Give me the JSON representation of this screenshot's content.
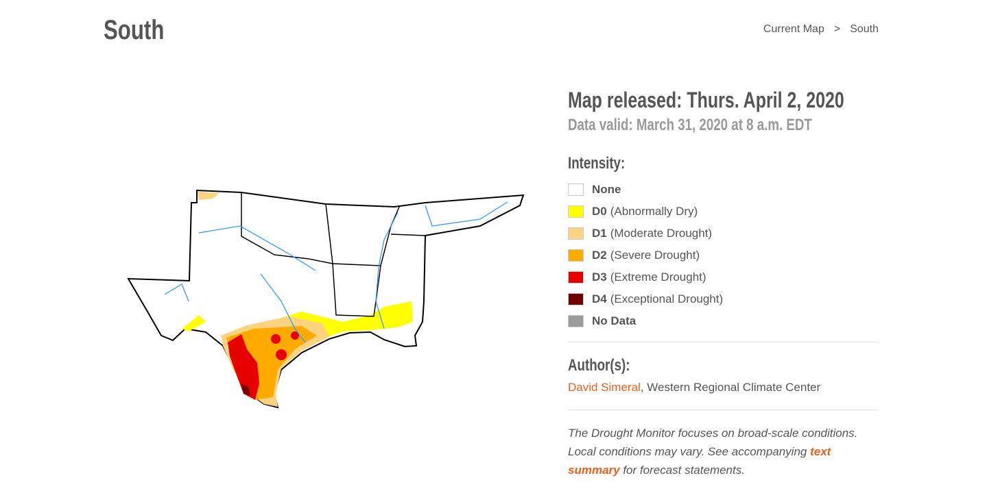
{
  "header": {
    "title": "South",
    "breadcrumb": [
      "Current Map",
      ">",
      "South"
    ]
  },
  "map_info": {
    "released": "Map released: Thurs. April 2, 2020",
    "valid": "Data valid: March 31, 2020 at 8 a.m. EDT"
  },
  "intensity": {
    "heading": "Intensity:",
    "items": [
      {
        "label": "None",
        "color": "#ffffff"
      },
      {
        "label": "D0",
        "description": "(Abnormally Dry)",
        "color": "#ffff00"
      },
      {
        "label": "D1",
        "description": "(Moderate Drought)",
        "color": "#fcd37f"
      },
      {
        "label": "D2",
        "description": "(Severe Drought)",
        "color": "#ffaa00"
      },
      {
        "label": "D3",
        "description": "(Extreme Drought)",
        "color": "#e60000"
      },
      {
        "label": "D4",
        "description": "(Exceptional Drought)",
        "color": "#730000"
      },
      {
        "label": "No Data",
        "color": "#9b9b9b"
      }
    ]
  },
  "authors": {
    "heading": "Author(s):",
    "name": "David Simeral",
    "affiliation": ", Western Regional Climate Center"
  },
  "note": {
    "before": "The Drought Monitor focuses on broad-scale conditions. Local conditions may vary. See accompanying ",
    "link": "text summary",
    "after": " for forecast statements."
  }
}
